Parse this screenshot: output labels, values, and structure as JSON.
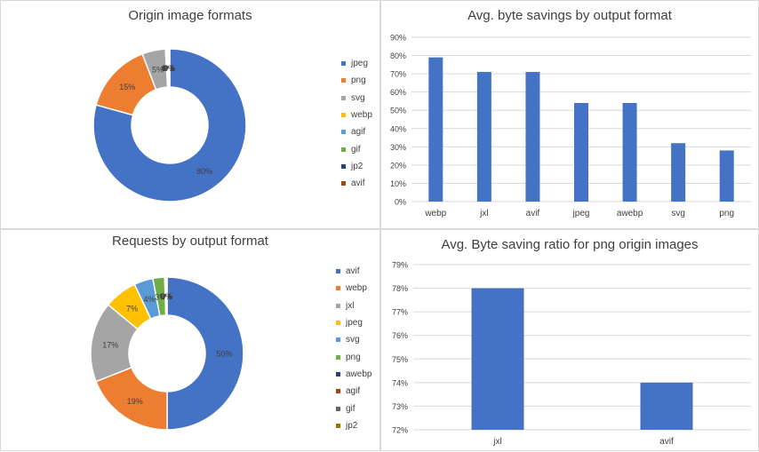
{
  "chart_data": [
    {
      "type": "pie",
      "variant": "donut",
      "title": "Origin image formats",
      "categories": [
        "jpeg",
        "png",
        "svg",
        "webp",
        "agif",
        "gif",
        "jp2",
        "avif"
      ],
      "values": [
        80,
        15,
        5,
        0.3,
        0.2,
        0.2,
        0.1,
        0.1
      ],
      "labels": [
        "80%",
        "15%",
        "5%",
        "0%",
        "0%",
        "0%",
        "0%",
        "0%"
      ],
      "colors": [
        "#4472C4",
        "#ED7D31",
        "#A5A5A5",
        "#FFC000",
        "#5B9BD5",
        "#70AD47",
        "#264478",
        "#9E480E"
      ],
      "legend": "right"
    },
    {
      "type": "bar",
      "title": "Avg. byte savings by output format",
      "categories": [
        "webp",
        "jxl",
        "avif",
        "jpeg",
        "awebp",
        "svg",
        "png"
      ],
      "values": [
        79,
        71,
        71,
        54,
        54,
        32,
        28
      ],
      "ylim": [
        0,
        90
      ],
      "ystep": 10,
      "yticks": [
        "0%",
        "10%",
        "20%",
        "30%",
        "40%",
        "50%",
        "60%",
        "70%",
        "80%",
        "90%"
      ],
      "grid": true,
      "color": "#4472C4"
    },
    {
      "type": "pie",
      "variant": "donut",
      "title": "Requests by output format",
      "categories": [
        "avif",
        "webp",
        "jxl",
        "jpeg",
        "svg",
        "png",
        "awebp",
        "agif",
        "gif",
        "jp2"
      ],
      "values": [
        50,
        19,
        17,
        7,
        4,
        2.5,
        0.2,
        0.1,
        0.1,
        0.1
      ],
      "labels": [
        "50%",
        "19%",
        "17%",
        "7%",
        "4%",
        "3%",
        "0%",
        "0%",
        "0%",
        "0%"
      ],
      "colors": [
        "#4472C4",
        "#ED7D31",
        "#A5A5A5",
        "#FFC000",
        "#5B9BD5",
        "#70AD47",
        "#264478",
        "#9E480E",
        "#636363",
        "#997300"
      ],
      "legend": "right"
    },
    {
      "type": "bar",
      "title": "Avg. Byte saving ratio for png origin images",
      "categories": [
        "jxl",
        "avif"
      ],
      "values": [
        78,
        74
      ],
      "ylim": [
        72,
        79
      ],
      "ystep": 1,
      "yticks": [
        "72%",
        "73%",
        "74%",
        "75%",
        "76%",
        "77%",
        "78%",
        "79%"
      ],
      "grid": true,
      "color": "#4472C4"
    }
  ]
}
